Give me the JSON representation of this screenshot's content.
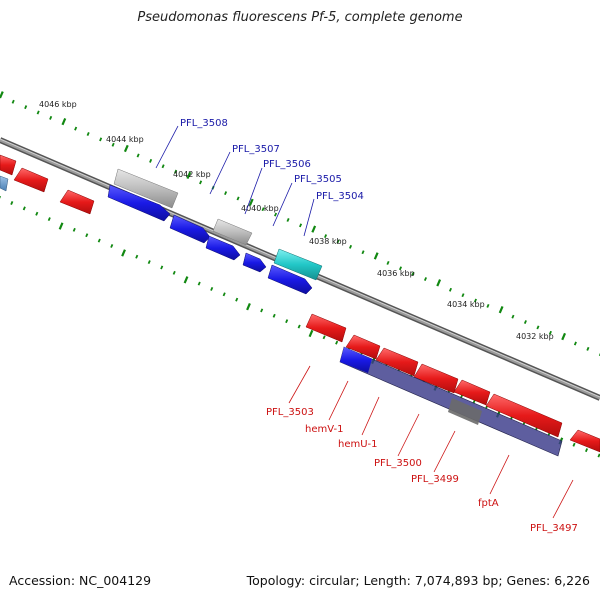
{
  "title": "Pseudomonas fluorescens Pf-5, complete genome",
  "accession": "Accession: NC_004129",
  "topology": "Topology: circular; Length: 7,074,893 bp; Genes: 6,226",
  "ruler_labels": [
    "4046 kbp",
    "4044 kbp",
    "4042 kbp",
    "4040 kbp",
    "4038 kbp",
    "4036 kbp",
    "4034 kbp",
    "4032 kbp"
  ],
  "gene_labels": {
    "forward": [
      "PFL_3508",
      "PFL_3507",
      "PFL_3506",
      "PFL_3505",
      "PFL_3504"
    ],
    "reverse": [
      "PFL_3503",
      "hemV-1",
      "hemU-1",
      "PFL_3500",
      "PFL_3499",
      "fptA",
      "PFL_3497"
    ]
  },
  "colors": {
    "forward_cds": "#1a1ae6",
    "reverse_cds": "#e61a1a",
    "grey_feature": "#bbbbbb",
    "cyan_feature": "#22c7c7",
    "overlay": "#4a4a8c",
    "backbone": "#777777",
    "ruler": "#118811",
    "forward_label": "#1a1aa8",
    "reverse_label": "#cc1111"
  }
}
